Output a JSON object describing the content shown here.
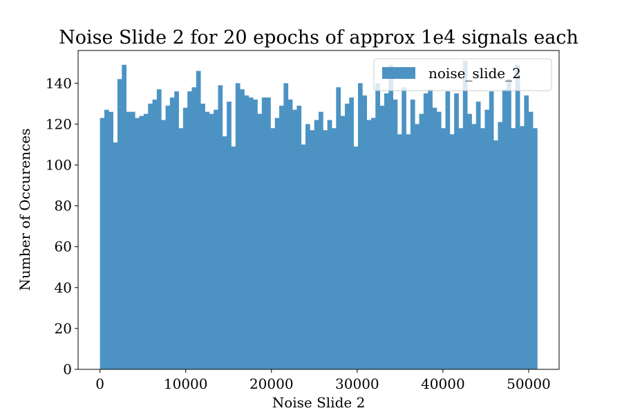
{
  "chart_data": {
    "type": "bar",
    "title": "Noise Slide 2 for 20 epochs of approx 1e4 signals each",
    "xlabel": "Noise Slide 2",
    "ylabel": "Number of Occurences",
    "xlim": [
      -2550,
      53550
    ],
    "ylim": [
      0,
      156
    ],
    "bin_start": 0,
    "bin_width": 510,
    "x_ticks": [
      0,
      10000,
      20000,
      30000,
      40000,
      50000
    ],
    "x_tick_labels": [
      "0",
      "10000",
      "20000",
      "30000",
      "40000",
      "50000"
    ],
    "y_ticks": [
      0,
      20,
      40,
      60,
      80,
      100,
      120,
      140
    ],
    "y_tick_labels": [
      "0",
      "20",
      "40",
      "60",
      "80",
      "100",
      "120",
      "140"
    ],
    "legend_position": "top-right",
    "series": [
      {
        "name": "noise_slide_2",
        "color": "#4c93c4",
        "values": [
          123,
          127,
          126,
          111,
          142,
          149,
          126,
          126,
          123,
          124,
          125,
          130,
          132,
          137,
          122,
          129,
          133,
          136,
          118,
          128,
          136,
          138,
          146,
          130,
          126,
          125,
          127,
          139,
          114,
          131,
          109,
          140,
          137,
          134,
          133,
          132,
          125,
          133,
          133,
          118,
          123,
          129,
          140,
          132,
          127,
          129,
          110,
          120,
          117,
          122,
          126,
          117,
          122,
          118,
          138,
          124,
          130,
          133,
          109,
          140,
          134,
          122,
          123,
          140,
          129,
          135,
          149,
          132,
          115,
          138,
          115,
          132,
          120,
          125,
          135,
          137,
          128,
          126,
          118,
          136,
          115,
          135,
          118,
          151,
          125,
          120,
          131,
          118,
          127,
          136,
          112,
          121,
          137,
          142,
          118,
          149,
          119,
          134,
          126,
          118
        ]
      }
    ]
  }
}
